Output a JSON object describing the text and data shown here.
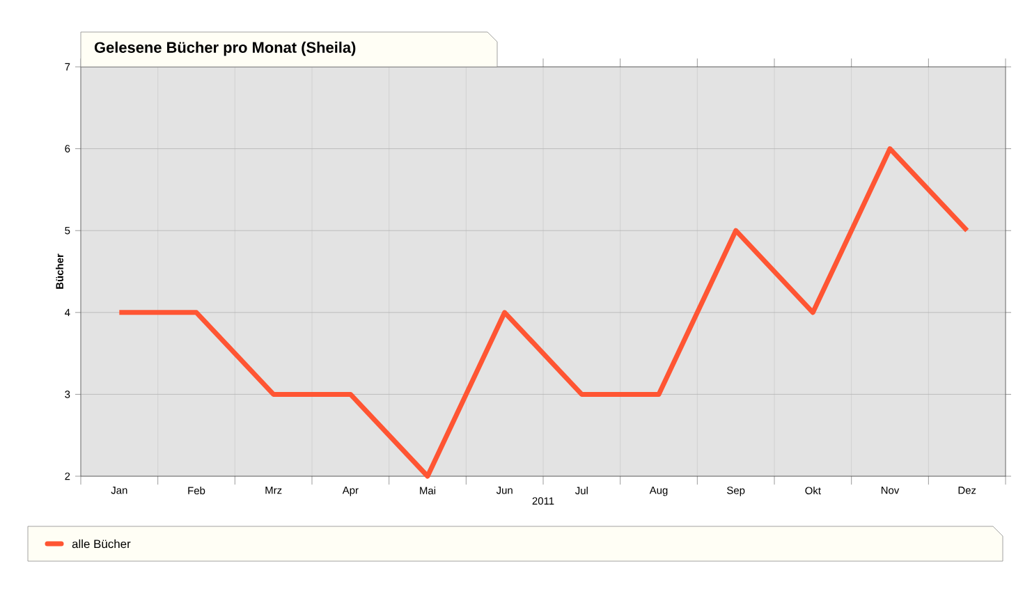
{
  "chart_data": {
    "type": "line",
    "title": "Gelesene Bücher pro Monat (Sheila)",
    "xlabel": "2011",
    "ylabel": "Bücher",
    "categories": [
      "Jan",
      "Feb",
      "Mrz",
      "Apr",
      "Mai",
      "Jun",
      "Jul",
      "Aug",
      "Sep",
      "Okt",
      "Nov",
      "Dez"
    ],
    "series": [
      {
        "name": "alle Bücher",
        "color": "#ff5533",
        "values": [
          4,
          4,
          3,
          3,
          2,
          4,
          3,
          3,
          5,
          4,
          6,
          5
        ]
      }
    ],
    "ylim": [
      2,
      7
    ],
    "yticks": [
      2,
      3,
      4,
      5,
      6,
      7
    ],
    "grid": true,
    "legend": "bottom",
    "marker": "none",
    "line_style": "solid"
  }
}
